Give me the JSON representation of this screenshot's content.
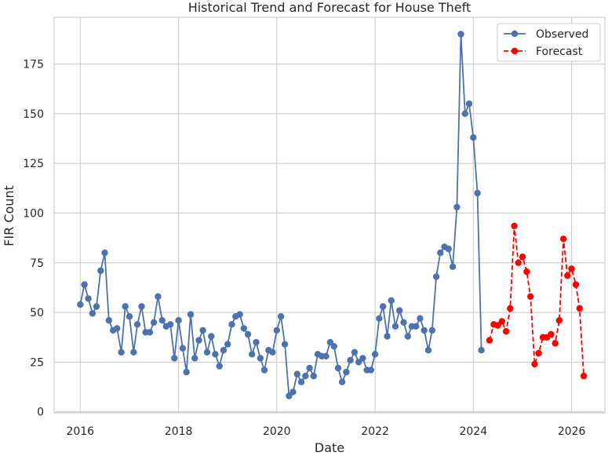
{
  "chart_data": {
    "type": "line",
    "title": "Historical Trend and Forecast for House Theft",
    "xlabel": "Date",
    "ylabel": "FIR Count",
    "x_range": [
      "2015-06-21",
      "2026-09-05"
    ],
    "ylim": [
      -0.5,
      198.5
    ],
    "x_ticks": [
      {
        "label": "2016",
        "date": "2016-01-01"
      },
      {
        "label": "2018",
        "date": "2018-01-01"
      },
      {
        "label": "2020",
        "date": "2020-01-01"
      },
      {
        "label": "2022",
        "date": "2022-01-01"
      },
      {
        "label": "2024",
        "date": "2024-01-01"
      },
      {
        "label": "2026",
        "date": "2026-01-01"
      }
    ],
    "y_ticks": [
      0,
      25,
      50,
      75,
      100,
      125,
      150,
      175
    ],
    "grid": true,
    "legend_position": "top-right",
    "series": [
      {
        "name": "Observed",
        "color": "#4c72b0",
        "style": "solid",
        "marker": "circle",
        "points": [
          [
            "2016-01-01",
            54
          ],
          [
            "2016-02-01",
            64
          ],
          [
            "2016-03-01",
            57
          ],
          [
            "2016-04-01",
            49.5
          ],
          [
            "2016-05-01",
            53
          ],
          [
            "2016-06-01",
            71
          ],
          [
            "2016-07-01",
            80
          ],
          [
            "2016-08-01",
            46
          ],
          [
            "2016-09-01",
            41
          ],
          [
            "2016-10-01",
            42
          ],
          [
            "2016-11-01",
            30
          ],
          [
            "2016-12-01",
            53
          ],
          [
            "2017-01-01",
            48
          ],
          [
            "2017-02-01",
            30
          ],
          [
            "2017-03-01",
            44
          ],
          [
            "2017-04-01",
            53
          ],
          [
            "2017-05-01",
            40
          ],
          [
            "2017-06-01",
            40
          ],
          [
            "2017-07-01",
            45
          ],
          [
            "2017-08-01",
            58
          ],
          [
            "2017-09-01",
            46
          ],
          [
            "2017-10-01",
            43
          ],
          [
            "2017-11-01",
            44
          ],
          [
            "2017-12-01",
            27
          ],
          [
            "2018-01-01",
            46
          ],
          [
            "2018-02-01",
            32
          ],
          [
            "2018-03-01",
            20
          ],
          [
            "2018-04-01",
            49
          ],
          [
            "2018-05-01",
            27
          ],
          [
            "2018-06-01",
            36
          ],
          [
            "2018-07-01",
            41
          ],
          [
            "2018-08-01",
            30
          ],
          [
            "2018-09-01",
            38
          ],
          [
            "2018-10-01",
            29
          ],
          [
            "2018-11-01",
            23
          ],
          [
            "2018-12-01",
            31
          ],
          [
            "2019-01-01",
            34
          ],
          [
            "2019-02-01",
            44
          ],
          [
            "2019-03-01",
            48
          ],
          [
            "2019-04-01",
            49
          ],
          [
            "2019-05-01",
            42
          ],
          [
            "2019-06-01",
            39
          ],
          [
            "2019-07-01",
            29
          ],
          [
            "2019-08-01",
            35
          ],
          [
            "2019-09-01",
            27
          ],
          [
            "2019-10-01",
            21
          ],
          [
            "2019-11-01",
            31
          ],
          [
            "2019-12-01",
            30
          ],
          [
            "2020-01-01",
            41
          ],
          [
            "2020-02-01",
            48
          ],
          [
            "2020-03-01",
            34
          ],
          [
            "2020-04-01",
            8
          ],
          [
            "2020-05-01",
            10
          ],
          [
            "2020-06-01",
            19
          ],
          [
            "2020-07-01",
            15
          ],
          [
            "2020-08-01",
            18
          ],
          [
            "2020-09-01",
            22
          ],
          [
            "2020-10-01",
            18
          ],
          [
            "2020-11-01",
            29
          ],
          [
            "2020-12-01",
            28
          ],
          [
            "2021-01-01",
            28
          ],
          [
            "2021-02-01",
            35
          ],
          [
            "2021-03-01",
            33
          ],
          [
            "2021-04-01",
            22
          ],
          [
            "2021-05-01",
            15
          ],
          [
            "2021-06-01",
            20
          ],
          [
            "2021-07-01",
            26
          ],
          [
            "2021-08-01",
            30
          ],
          [
            "2021-09-01",
            25
          ],
          [
            "2021-10-01",
            27
          ],
          [
            "2021-11-01",
            21
          ],
          [
            "2021-12-01",
            21
          ],
          [
            "2022-01-01",
            29
          ],
          [
            "2022-02-01",
            47
          ],
          [
            "2022-03-01",
            53
          ],
          [
            "2022-04-01",
            38
          ],
          [
            "2022-05-01",
            56
          ],
          [
            "2022-06-01",
            43
          ],
          [
            "2022-07-01",
            51
          ],
          [
            "2022-08-01",
            45
          ],
          [
            "2022-09-01",
            38
          ],
          [
            "2022-10-01",
            43
          ],
          [
            "2022-11-01",
            43
          ],
          [
            "2022-12-01",
            47
          ],
          [
            "2023-01-01",
            41
          ],
          [
            "2023-02-01",
            31
          ],
          [
            "2023-03-01",
            41
          ],
          [
            "2023-04-01",
            68
          ],
          [
            "2023-05-01",
            80
          ],
          [
            "2023-06-01",
            83
          ],
          [
            "2023-07-01",
            82
          ],
          [
            "2023-08-01",
            73
          ],
          [
            "2023-09-01",
            103
          ],
          [
            "2023-10-01",
            190
          ],
          [
            "2023-11-01",
            150
          ],
          [
            "2023-12-01",
            155
          ],
          [
            "2024-01-01",
            138
          ],
          [
            "2024-02-01",
            110
          ],
          [
            "2024-03-01",
            31
          ]
        ]
      },
      {
        "name": "Forecast",
        "color": "#ff0000",
        "style": "dashed",
        "marker": "circle",
        "points": [
          [
            "2024-05-01",
            36
          ],
          [
            "2024-06-01",
            44
          ],
          [
            "2024-07-01",
            43.5
          ],
          [
            "2024-08-01",
            45.5
          ],
          [
            "2024-09-01",
            40.5
          ],
          [
            "2024-10-01",
            52
          ],
          [
            "2024-11-01",
            93.5
          ],
          [
            "2024-12-01",
            75
          ],
          [
            "2025-01-01",
            78
          ],
          [
            "2025-02-01",
            70.5
          ],
          [
            "2025-03-01",
            58
          ],
          [
            "2025-04-01",
            24
          ],
          [
            "2025-05-01",
            29.5
          ],
          [
            "2025-06-01",
            37.5
          ],
          [
            "2025-07-01",
            37.5
          ],
          [
            "2025-08-01",
            39
          ],
          [
            "2025-09-01",
            34.5
          ],
          [
            "2025-10-01",
            46
          ],
          [
            "2025-11-01",
            87
          ],
          [
            "2025-12-01",
            68.5
          ],
          [
            "2026-01-01",
            72
          ],
          [
            "2026-02-01",
            64
          ],
          [
            "2026-03-01",
            52
          ],
          [
            "2026-04-01",
            18
          ]
        ]
      }
    ]
  }
}
